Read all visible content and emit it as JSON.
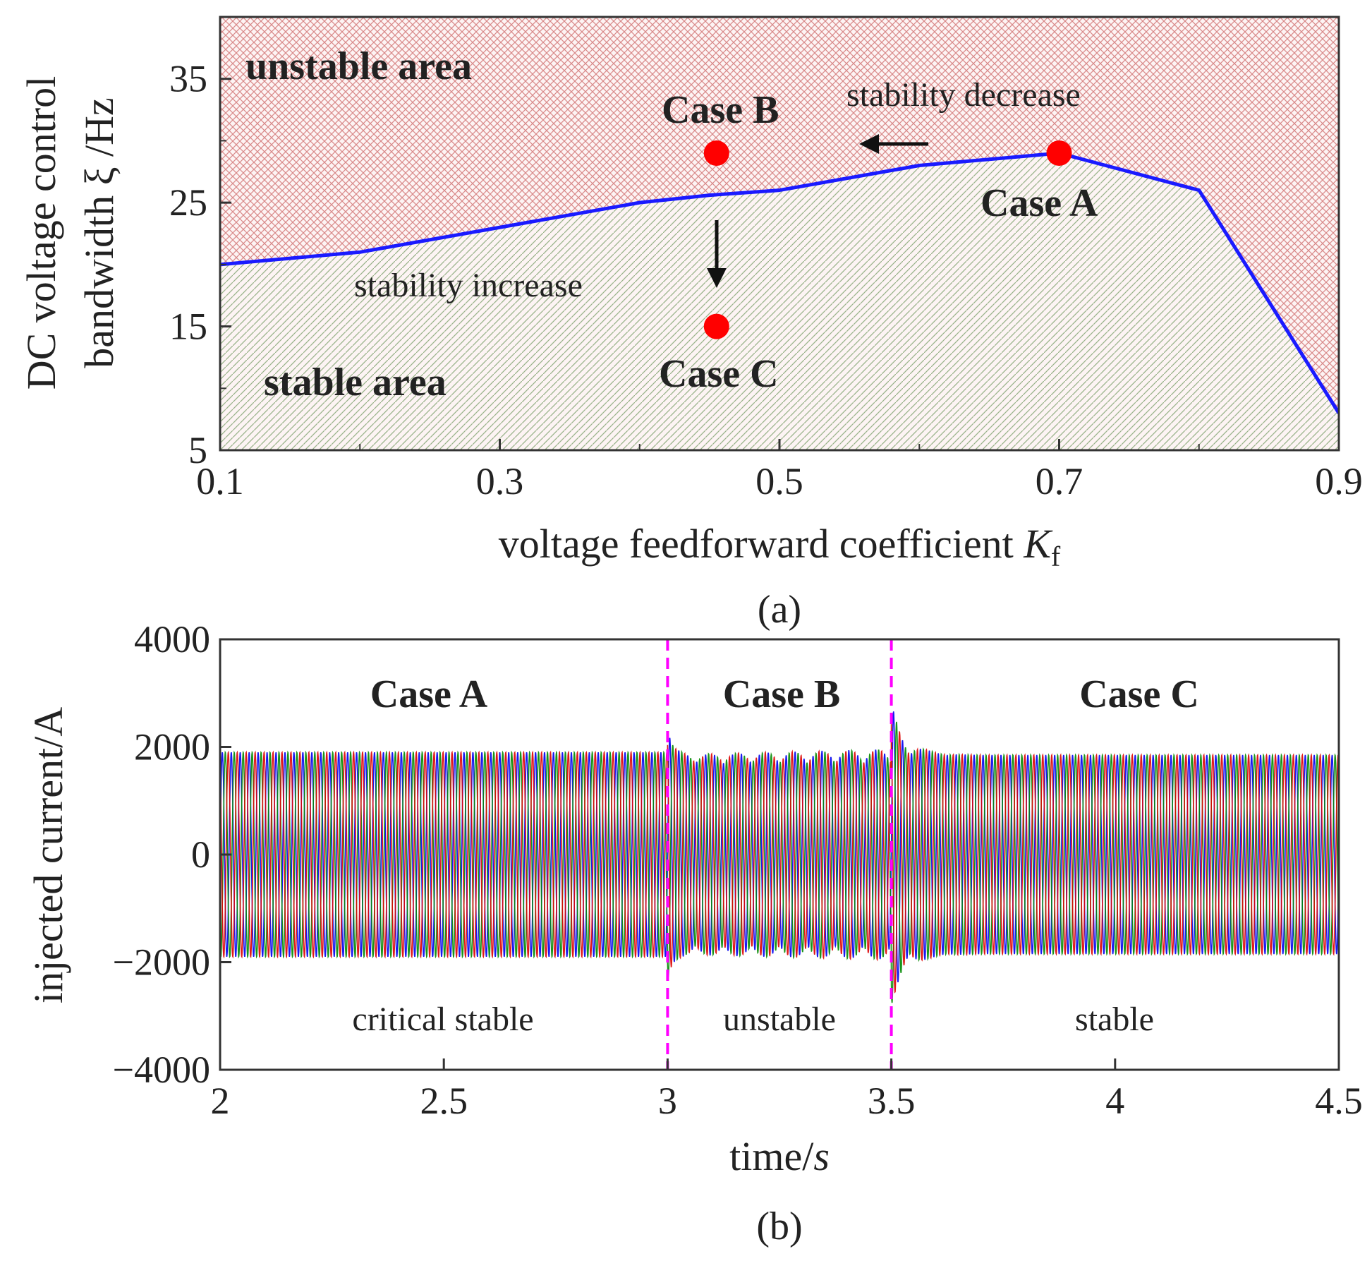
{
  "chart_data": [
    {
      "type": "line",
      "panel_label": "(a)",
      "xlabel": "voltage feedforward coefficient ",
      "xlabel_symbol": "K",
      "xlabel_subscript": "f",
      "ylabel_line1": "DC voltage control",
      "ylabel_line2": "bandwidth ξ /Hz",
      "xlim": [
        0.1,
        0.9
      ],
      "ylim": [
        5,
        40
      ],
      "x_ticks": [
        "0.1",
        "0.3",
        "0.5",
        "0.7",
        "0.9"
      ],
      "y_ticks": [
        "5",
        "15",
        "25",
        "35"
      ],
      "x_tick_values": [
        0.1,
        0.3,
        0.5,
        0.7,
        0.9
      ],
      "y_tick_values": [
        5,
        15,
        25,
        35
      ],
      "y_minor_tick_values": [
        10,
        20,
        30
      ],
      "x_minor_tick_values": [
        0.2,
        0.4,
        0.6,
        0.8
      ],
      "boundary": {
        "x": [
          0.1,
          0.2,
          0.3,
          0.4,
          0.45,
          0.5,
          0.6,
          0.7,
          0.8,
          0.9
        ],
        "y": [
          20,
          21,
          23,
          25,
          25.6,
          26,
          28,
          29,
          26,
          8
        ],
        "color": "#1a1aff"
      },
      "points": [
        {
          "label": "Case A",
          "x": 0.7,
          "y": 29,
          "color": "#ff0000"
        },
        {
          "label": "Case B",
          "x": 0.455,
          "y": 29,
          "color": "#ff0000"
        },
        {
          "label": "Case C",
          "x": 0.455,
          "y": 15,
          "color": "#ff0000"
        }
      ],
      "regions": {
        "unstable": {
          "label": "unstable area",
          "color": "#d98a8a"
        },
        "stable": {
          "label": "stable area",
          "color": "#9ab38a"
        }
      },
      "annotations": {
        "stability_decrease": "stability decrease",
        "stability_increase": "stability increase"
      }
    },
    {
      "type": "line",
      "panel_label": "(b)",
      "xlabel": "time/",
      "xlabel_italic": "s",
      "ylabel": "injected current/A",
      "xlim": [
        2,
        4.5
      ],
      "ylim": [
        -4000,
        4000
      ],
      "x_ticks": [
        "2",
        "2.5",
        "3",
        "3.5",
        "4",
        "4.5"
      ],
      "y_ticks": [
        "4000",
        "2000",
        "0",
        "−2000",
        "−4000"
      ],
      "x_tick_values": [
        2,
        2.5,
        3,
        3.5,
        4,
        4.5
      ],
      "y_tick_values": [
        4000,
        2000,
        0,
        -2000,
        -4000
      ],
      "frequency_hz": 50,
      "phases": [
        {
          "name": "",
          "color": "#0000ee",
          "phase_deg": 0
        },
        {
          "name": "",
          "color": "#008800",
          "phase_deg": -120
        },
        {
          "name": "",
          "color": "#dd0000",
          "phase_deg": 120
        }
      ],
      "segments": [
        {
          "case": "Case A",
          "state": "critical stable",
          "start": 2,
          "end": 3,
          "amplitude": 1900
        },
        {
          "case": "Case B",
          "state": "unstable",
          "start": 3,
          "end": 3.5,
          "amplitude": 1700
        },
        {
          "case": "Case C",
          "state": "stable",
          "start": 3.5,
          "end": 4.5,
          "amplitude": 1850
        }
      ],
      "transients": [
        {
          "t": 3.0,
          "peak": 2350
        },
        {
          "t": 3.5,
          "peak": 2800
        }
      ],
      "dividers": {
        "x": [
          3.0,
          3.5
        ],
        "color": "#ff00ff"
      }
    }
  ]
}
